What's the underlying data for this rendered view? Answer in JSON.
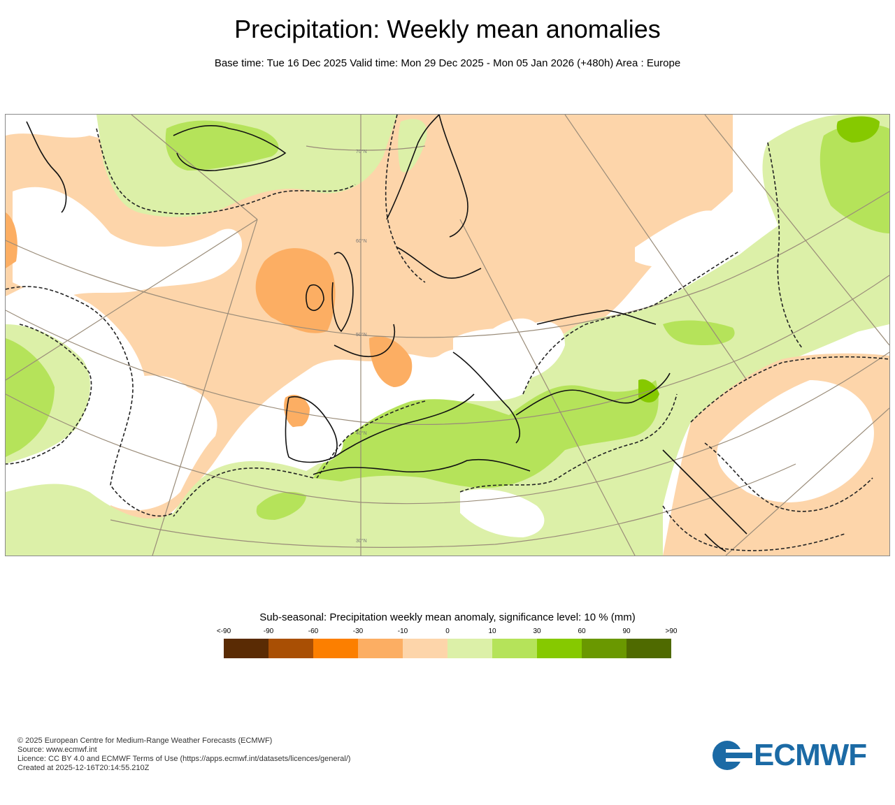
{
  "header": {
    "title": "Precipitation: Weekly mean anomalies",
    "subtitle": "Base time: Tue 16 Dec 2025 Valid time: Mon 29 Dec 2025 - Mon 05 Jan 2026 (+480h) Area : Europe"
  },
  "map": {
    "latitude_labels": [
      "70°N",
      "60°N",
      "50°N",
      "40°N",
      "30°N"
    ]
  },
  "legend": {
    "title": "Sub-seasonal: Precipitation weekly mean anomaly, significance level: 10 % (mm)",
    "ticks": [
      "<-90",
      "-90",
      "-60",
      "-30",
      "-10",
      "0",
      "10",
      "30",
      "60",
      "90",
      ">90"
    ],
    "colors": [
      "#5a2b04",
      "#a94f04",
      "#fc7f00",
      "#fcae63",
      "#fdd5aa",
      "#dcf0a8",
      "#b5e35a",
      "#86c900",
      "#6a9800",
      "#4f6a00"
    ]
  },
  "footer": {
    "line1": "© 2025 European Centre for Medium-Range Weather Forecasts (ECMWF)",
    "line2": "Source: www.ecmwf.int",
    "line3": "Licence: CC BY 4.0 and ECMWF Terms of Use (https://apps.ecmwf.int/datasets/licences/general/)",
    "line4": "Created at 2025-12-16T20:14:55.210Z"
  },
  "logo": {
    "text": "ECMWF",
    "color": "#1b6aa5"
  }
}
